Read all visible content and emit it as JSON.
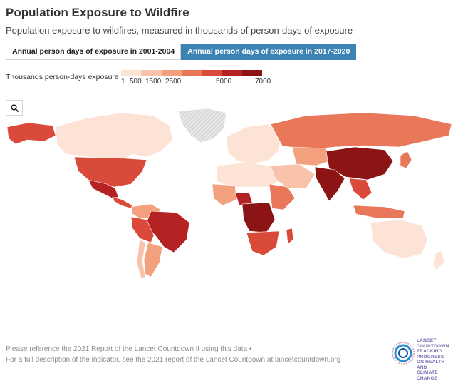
{
  "header": {
    "title": "Population Exposure to Wildfire",
    "subtitle": "Population exposure to wildfires, measured in thousands of person-days of exposure"
  },
  "toggle": {
    "options": [
      "Annual person days of exposure in 2001-2004",
      "Annual person days of exposure in 2017-2020"
    ],
    "selected": "Annual person days of exposure in 2017-2020"
  },
  "legend": {
    "label": "Thousands person-days exposure",
    "ticks": [
      "1",
      "500",
      "1500",
      "2500",
      "5000",
      "7000"
    ],
    "colors": [
      "#fde2d6",
      "#f8c3aa",
      "#f2a07d",
      "#e9775a",
      "#d94a3b",
      "#b42224",
      "#8c1414"
    ]
  },
  "map": {
    "search_icon": "search-icon",
    "no_data_color": "#d4d4d4",
    "regions": [
      {
        "name": "Alaska",
        "level": 4
      },
      {
        "name": "Canada",
        "level": 0
      },
      {
        "name": "Greenland",
        "level": -1
      },
      {
        "name": "United States",
        "level": 4
      },
      {
        "name": "Mexico",
        "level": 5
      },
      {
        "name": "Central America",
        "level": 4
      },
      {
        "name": "Colombia-Venezuela",
        "level": 2
      },
      {
        "name": "Brazil",
        "level": 5
      },
      {
        "name": "Peru-Bolivia",
        "level": 4
      },
      {
        "name": "Argentina",
        "level": 2
      },
      {
        "name": "Chile",
        "level": 1
      },
      {
        "name": "Europe",
        "level": 0
      },
      {
        "name": "North Africa",
        "level": 0
      },
      {
        "name": "West Africa",
        "level": 2
      },
      {
        "name": "Nigeria",
        "level": 5
      },
      {
        "name": "Central Africa",
        "level": 6
      },
      {
        "name": "East Africa",
        "level": 3
      },
      {
        "name": "Southern Africa",
        "level": 4
      },
      {
        "name": "Madagascar",
        "level": 4
      },
      {
        "name": "Middle East",
        "level": 1
      },
      {
        "name": "Russia",
        "level": 3
      },
      {
        "name": "Central Asia",
        "level": 2
      },
      {
        "name": "China",
        "level": 6
      },
      {
        "name": "India",
        "level": 6
      },
      {
        "name": "Southeast Asia",
        "level": 4
      },
      {
        "name": "Indonesia",
        "level": 3
      },
      {
        "name": "Australia",
        "level": 0
      },
      {
        "name": "New Zealand",
        "level": 0
      },
      {
        "name": "Japan",
        "level": 3
      }
    ]
  },
  "footer": {
    "line1": "Please reference the 2021 Report of the Lancet Countdown if using this data •",
    "line2": "For a full description of the indicator, see the 2021 report of the Lancet Countdown at lancetcountdown.org"
  },
  "logo": {
    "line1": "LANCET COUNTDOWN",
    "line2": "TRACKING PROGRESS",
    "line3": "ON HEALTH",
    "line4": "AND",
    "line5": "CLIMATE CHANGE"
  }
}
